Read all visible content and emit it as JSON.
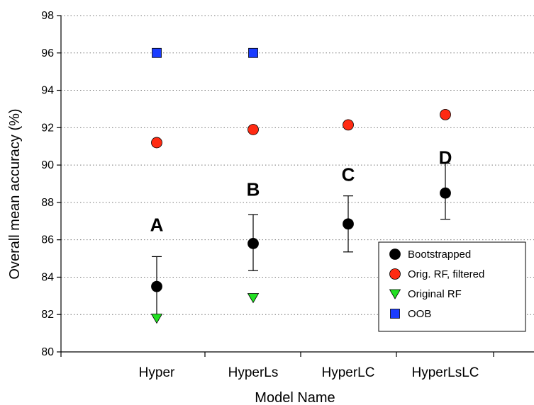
{
  "chart_data": {
    "type": "scatter",
    "title": "",
    "xlabel": "Model Name",
    "ylabel": "Overall mean accuracy (%)",
    "ylim": [
      80,
      98
    ],
    "yticks": [
      80,
      82,
      84,
      86,
      88,
      90,
      92,
      94,
      96,
      98
    ],
    "grid": "horizontal-dotted",
    "legend_position": "bottom-right",
    "categories": [
      "Hyper",
      "HyperLs",
      "HyperLC",
      "HyperLsLC"
    ],
    "series": [
      {
        "name": "Bootstrapped",
        "marker": "circle",
        "color": "#000000",
        "values": [
          83.5,
          85.8,
          86.85,
          88.5
        ],
        "error_low": [
          82.0,
          84.35,
          85.35,
          87.1
        ],
        "error_high": [
          85.1,
          87.35,
          88.35,
          90.1
        ]
      },
      {
        "name": "Orig. RF, filtered",
        "marker": "circle",
        "color": "#ff2a12",
        "values": [
          91.2,
          91.9,
          92.15,
          92.7
        ]
      },
      {
        "name": "Original RF",
        "marker": "triangle-down",
        "color": "#22e022",
        "values": [
          81.8,
          82.9,
          null,
          null
        ]
      },
      {
        "name": "OOB",
        "marker": "square",
        "color": "#1a3cff",
        "values": [
          96.0,
          96.0,
          null,
          null
        ]
      }
    ],
    "annotations": [
      {
        "text": "A",
        "category": "Hyper",
        "y": 86.8
      },
      {
        "text": "B",
        "category": "HyperLs",
        "y": 88.7
      },
      {
        "text": "C",
        "category": "HyperLC",
        "y": 89.5
      },
      {
        "text": "D",
        "category": "HyperLsLC",
        "y": 90.4
      }
    ]
  }
}
